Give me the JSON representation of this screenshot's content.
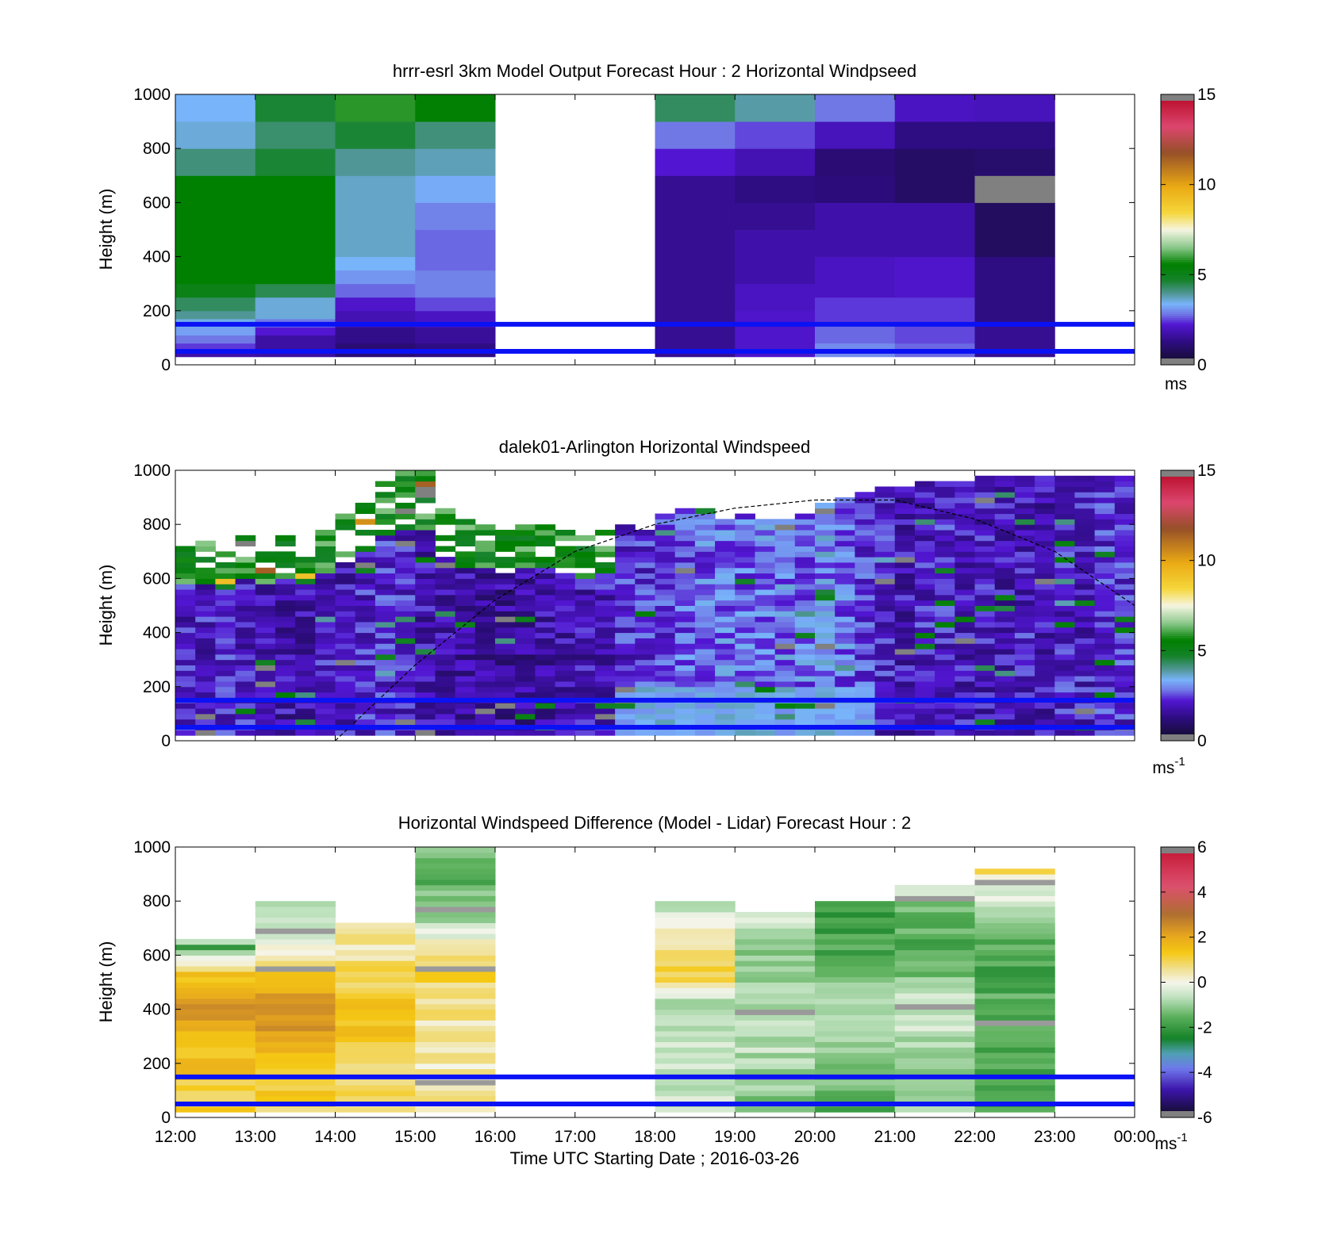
{
  "figure": {
    "xlabel": "Time UTC  Starting Date ; 2016-03-26"
  },
  "chart_data": [
    {
      "type": "heatmap",
      "title": "hrrr-esrl 3km Model Output   Forecast Hour : 2 Horizontal Windpseed",
      "ylabel": "Height (m)",
      "xlim": [
        "12:00",
        "00:00"
      ],
      "ylim": [
        0,
        1000
      ],
      "yticks": [
        "0",
        "200",
        "400",
        "600",
        "800",
        "1000"
      ],
      "x_tick_labels_shown": false,
      "colorbar": {
        "range": [
          0,
          15
        ],
        "ticks": [
          "0",
          "5",
          "10",
          "15"
        ],
        "unit": "ms",
        "unit_sup": ""
      },
      "colors": {
        "reference_lines": "#0a12f5",
        "missing": "#808080"
      },
      "reference_lines_height_m": [
        50,
        150
      ],
      "columns": [
        {
          "start_hour": 12,
          "values": [
            {
              "z0": 30,
              "z1": 50,
              "v": 1.5
            },
            {
              "z0": 50,
              "z1": 80,
              "v": 2.2
            },
            {
              "z0": 80,
              "z1": 110,
              "v": 2.6
            },
            {
              "z0": 110,
              "z1": 140,
              "v": 3.0
            },
            {
              "z0": 140,
              "z1": 170,
              "v": 3.3
            },
            {
              "z0": 170,
              "z1": 200,
              "v": 3.8
            },
            {
              "z0": 200,
              "z1": 250,
              "v": 4.2
            },
            {
              "z0": 250,
              "z1": 300,
              "v": 5.0
            },
            {
              "z0": 300,
              "z1": 700,
              "v": 5.5
            },
            {
              "z0": 700,
              "z1": 800,
              "v": 4.0
            },
            {
              "z0": 800,
              "z1": 900,
              "v": 3.4
            },
            {
              "z0": 900,
              "z1": 1000,
              "v": 3.2
            }
          ]
        },
        {
          "start_hour": 13,
          "values": [
            {
              "z0": 30,
              "z1": 110,
              "v": 1.4
            },
            {
              "z0": 110,
              "z1": 140,
              "v": 2.0
            },
            {
              "z0": 140,
              "z1": 170,
              "v": 2.6
            },
            {
              "z0": 170,
              "z1": 250,
              "v": 3.4
            },
            {
              "z0": 250,
              "z1": 300,
              "v": 4.3
            },
            {
              "z0": 300,
              "z1": 700,
              "v": 5.5
            },
            {
              "z0": 700,
              "z1": 800,
              "v": 4.5
            },
            {
              "z0": 800,
              "z1": 900,
              "v": 4.1
            },
            {
              "z0": 900,
              "z1": 1000,
              "v": 4.5
            }
          ]
        },
        {
          "start_hour": 14,
          "values": [
            {
              "z0": 30,
              "z1": 80,
              "v": 0.8
            },
            {
              "z0": 80,
              "z1": 140,
              "v": 1.1
            },
            {
              "z0": 140,
              "z1": 200,
              "v": 1.6
            },
            {
              "z0": 200,
              "z1": 250,
              "v": 1.9
            },
            {
              "z0": 250,
              "z1": 300,
              "v": 2.5
            },
            {
              "z0": 300,
              "z1": 350,
              "v": 2.9
            },
            {
              "z0": 350,
              "z1": 400,
              "v": 3.2
            },
            {
              "z0": 400,
              "z1": 700,
              "v": 3.5
            },
            {
              "z0": 700,
              "z1": 800,
              "v": 3.8
            },
            {
              "z0": 800,
              "z1": 900,
              "v": 4.5
            },
            {
              "z0": 900,
              "z1": 1000,
              "v": 5.8
            }
          ]
        },
        {
          "start_hour": 15,
          "values": [
            {
              "z0": 30,
              "z1": 80,
              "v": 1.0
            },
            {
              "z0": 80,
              "z1": 140,
              "v": 1.3
            },
            {
              "z0": 140,
              "z1": 200,
              "v": 1.8
            },
            {
              "z0": 200,
              "z1": 250,
              "v": 2.3
            },
            {
              "z0": 250,
              "z1": 350,
              "v": 2.7
            },
            {
              "z0": 350,
              "z1": 500,
              "v": 2.5
            },
            {
              "z0": 500,
              "z1": 600,
              "v": 2.7
            },
            {
              "z0": 600,
              "z1": 700,
              "v": 3.1
            },
            {
              "z0": 700,
              "z1": 800,
              "v": 3.6
            },
            {
              "z0": 800,
              "z1": 900,
              "v": 4.0
            },
            {
              "z0": 900,
              "z1": 1000,
              "v": 5.4
            }
          ]
        },
        {
          "start_hour": 18,
          "values": [
            {
              "z0": 30,
              "z1": 700,
              "v": 1.2
            },
            {
              "z0": 700,
              "z1": 800,
              "v": 2.0
            },
            {
              "z0": 800,
              "z1": 900,
              "v": 2.6
            },
            {
              "z0": 900,
              "z1": 1000,
              "v": 4.2
            }
          ]
        },
        {
          "start_hour": 19,
          "values": [
            {
              "z0": 30,
              "z1": 80,
              "v": 1.9
            },
            {
              "z0": 80,
              "z1": 200,
              "v": 1.9
            },
            {
              "z0": 200,
              "z1": 300,
              "v": 1.8
            },
            {
              "z0": 300,
              "z1": 500,
              "v": 1.5
            },
            {
              "z0": 500,
              "z1": 600,
              "v": 1.2
            },
            {
              "z0": 600,
              "z1": 700,
              "v": 1.0
            },
            {
              "z0": 700,
              "z1": 800,
              "v": 1.6
            },
            {
              "z0": 800,
              "z1": 900,
              "v": 2.3
            },
            {
              "z0": 900,
              "z1": 1000,
              "v": 3.7
            }
          ]
        },
        {
          "start_hour": 20,
          "values": [
            {
              "z0": 30,
              "z1": 80,
              "v": 2.8
            },
            {
              "z0": 80,
              "z1": 150,
              "v": 2.5
            },
            {
              "z0": 150,
              "z1": 250,
              "v": 2.2
            },
            {
              "z0": 250,
              "z1": 400,
              "v": 1.8
            },
            {
              "z0": 400,
              "z1": 600,
              "v": 1.5
            },
            {
              "z0": 600,
              "z1": 700,
              "v": 0.9
            },
            {
              "z0": 700,
              "z1": 800,
              "v": 0.8
            },
            {
              "z0": 800,
              "z1": 900,
              "v": 1.7
            },
            {
              "z0": 900,
              "z1": 1000,
              "v": 2.6
            }
          ]
        },
        {
          "start_hour": 21,
          "values": [
            {
              "z0": 30,
              "z1": 80,
              "v": 2.5
            },
            {
              "z0": 80,
              "z1": 150,
              "v": 2.3
            },
            {
              "z0": 150,
              "z1": 250,
              "v": 2.2
            },
            {
              "z0": 250,
              "z1": 400,
              "v": 1.9
            },
            {
              "z0": 400,
              "z1": 600,
              "v": 1.5
            },
            {
              "z0": 600,
              "z1": 800,
              "v": 0.6
            },
            {
              "z0": 800,
              "z1": 900,
              "v": 1.0
            },
            {
              "z0": 900,
              "z1": 1000,
              "v": 1.8
            }
          ]
        },
        {
          "start_hour": 22,
          "values": [
            {
              "z0": 30,
              "z1": 150,
              "v": 1.2
            },
            {
              "z0": 150,
              "z1": 400,
              "v": 1.0
            },
            {
              "z0": 400,
              "z1": 600,
              "v": 0.5
            },
            {
              "z0": 600,
              "z1": 700,
              "v": null
            },
            {
              "z0": 700,
              "z1": 800,
              "v": 0.7
            },
            {
              "z0": 800,
              "z1": 900,
              "v": 1.0
            },
            {
              "z0": 900,
              "z1": 1000,
              "v": 1.7
            }
          ]
        }
      ]
    },
    {
      "type": "heatmap",
      "title": "dalek01-Arlington  Horizontal Windspeed",
      "ylabel": "Height (m)",
      "xlim": [
        "12:00",
        "00:00"
      ],
      "ylim": [
        0,
        1000
      ],
      "yticks": [
        "0",
        "200",
        "400",
        "600",
        "800",
        "1000"
      ],
      "x_tick_labels_shown": false,
      "colorbar": {
        "range": [
          0,
          15
        ],
        "ticks": [
          "0",
          "5",
          "10",
          "15"
        ],
        "unit": "ms",
        "unit_sup": "-1"
      },
      "colors": {
        "reference_lines": "#0a12f5",
        "curve": "#000000"
      },
      "reference_lines_height_m": [
        50,
        150
      ],
      "column_width_hours": 0.25,
      "vertical_resolution_m": 20,
      "column_mean_speed_ms": [
        1.8,
        1.8,
        2.0,
        1.8,
        1.6,
        1.5,
        1.6,
        1.8,
        1.7,
        1.9,
        2.0,
        1.9,
        1.6,
        1.5,
        1.4,
        1.4,
        1.3,
        1.3,
        1.4,
        1.5,
        1.6,
        1.7,
        2.0,
        2.1,
        2.2,
        2.4,
        2.5,
        2.6,
        2.5,
        2.7,
        2.7,
        2.6,
        2.8,
        2.6,
        2.2,
        1.9,
        1.6,
        1.8,
        1.9,
        1.7,
        1.7,
        1.6,
        1.8,
        1.6,
        1.9,
        1.8,
        2.0,
        2.0
      ],
      "top_of_data_m": [
        720,
        740,
        700,
        760,
        720,
        760,
        720,
        790,
        840,
        880,
        950,
        990,
        990,
        850,
        820,
        800,
        780,
        800,
        800,
        770,
        760,
        780,
        800,
        770,
        840,
        860,
        850,
        820,
        830,
        810,
        820,
        840,
        880,
        890,
        920,
        940,
        930,
        950,
        960,
        960,
        970,
        970,
        980,
        980,
        970,
        980,
        980,
        970
      ],
      "curve_points": [
        [
          14.0,
          0
        ],
        [
          15.0,
          280
        ],
        [
          16.0,
          520
        ],
        [
          17.0,
          700
        ],
        [
          18.0,
          800
        ],
        [
          19.0,
          860
        ],
        [
          20.0,
          890
        ],
        [
          21.0,
          890
        ],
        [
          22.0,
          820
        ],
        [
          23.0,
          700
        ],
        [
          24.0,
          500
        ]
      ]
    },
    {
      "type": "heatmap",
      "title": "Horizontal Windspeed Difference (Model - Lidar) Forecast Hour : 2",
      "ylabel": "Height (m)",
      "xlim": [
        "12:00",
        "00:00"
      ],
      "ylim": [
        0,
        1000
      ],
      "yticks": [
        "0",
        "200",
        "400",
        "600",
        "800",
        "1000"
      ],
      "xticks": [
        "12:00",
        "13:00",
        "14:00",
        "15:00",
        "16:00",
        "17:00",
        "18:00",
        "19:00",
        "20:00",
        "21:00",
        "22:00",
        "23:00",
        "00:00"
      ],
      "x_tick_labels_shown": true,
      "colorbar": {
        "range": [
          -6,
          6
        ],
        "ticks": [
          "-6",
          "-4",
          "-2",
          "0",
          "2",
          "4",
          "6"
        ],
        "unit": "ms",
        "unit_sup": "-1"
      },
      "colors": {
        "reference_lines": "#0a12f5"
      },
      "reference_lines_height_m": [
        50,
        150
      ],
      "vertical_resolution_m": 20,
      "columns": [
        {
          "start_hour": 12,
          "top_m": 650,
          "profile": [
            [
              0,
              1.0
            ],
            [
              200,
              1.5
            ],
            [
              400,
              2.4
            ],
            [
              550,
              1.0
            ],
            [
              620,
              -2.0
            ],
            [
              650,
              -0.5
            ]
          ]
        },
        {
          "start_hour": 13,
          "top_m": 790,
          "profile": [
            [
              0,
              1.0
            ],
            [
              200,
              1.6
            ],
            [
              400,
              2.8
            ],
            [
              560,
              1.2
            ],
            [
              620,
              0.0
            ],
            [
              790,
              -0.8
            ]
          ]
        },
        {
          "start_hour": 14,
          "top_m": 710,
          "profile": [
            [
              0,
              0.6
            ],
            [
              200,
              1.1
            ],
            [
              400,
              1.6
            ],
            [
              600,
              0.6
            ],
            [
              710,
              0.3
            ]
          ]
        },
        {
          "start_hour": 15,
          "top_m": 990,
          "profile": [
            [
              0,
              0.5
            ],
            [
              200,
              0.4
            ],
            [
              400,
              0.6
            ],
            [
              550,
              1.2
            ],
            [
              700,
              -0.6
            ],
            [
              800,
              -1.3
            ],
            [
              950,
              -1.8
            ],
            [
              990,
              -0.5
            ]
          ]
        },
        {
          "start_hour": 18,
          "top_m": 790,
          "profile": [
            [
              0,
              -0.6
            ],
            [
              200,
              -0.4
            ],
            [
              400,
              -1.2
            ],
            [
              500,
              1.2
            ],
            [
              600,
              1.0
            ],
            [
              700,
              0.2
            ],
            [
              790,
              -1.0
            ]
          ]
        },
        {
          "start_hour": 19,
          "top_m": 760,
          "profile": [
            [
              0,
              -1.2
            ],
            [
              200,
              -0.8
            ],
            [
              400,
              -0.7
            ],
            [
              600,
              -1.2
            ],
            [
              760,
              -0.2
            ]
          ]
        },
        {
          "start_hour": 20,
          "top_m": 790,
          "profile": [
            [
              0,
              -1.7
            ],
            [
              200,
              -1.2
            ],
            [
              400,
              -1.0
            ],
            [
              600,
              -1.8
            ],
            [
              790,
              -2.2
            ]
          ]
        },
        {
          "start_hour": 21,
          "top_m": 860,
          "profile": [
            [
              0,
              -1.0
            ],
            [
              200,
              -0.9
            ],
            [
              400,
              -0.4
            ],
            [
              600,
              -1.8
            ],
            [
              800,
              -1.3
            ],
            [
              860,
              0.3
            ]
          ]
        },
        {
          "start_hour": 22,
          "top_m": 920,
          "profile": [
            [
              0,
              -2.0
            ],
            [
              200,
              -1.9
            ],
            [
              400,
              -1.7
            ],
            [
              600,
              -1.9
            ],
            [
              800,
              -0.4
            ],
            [
              920,
              0.9
            ]
          ]
        }
      ]
    }
  ]
}
